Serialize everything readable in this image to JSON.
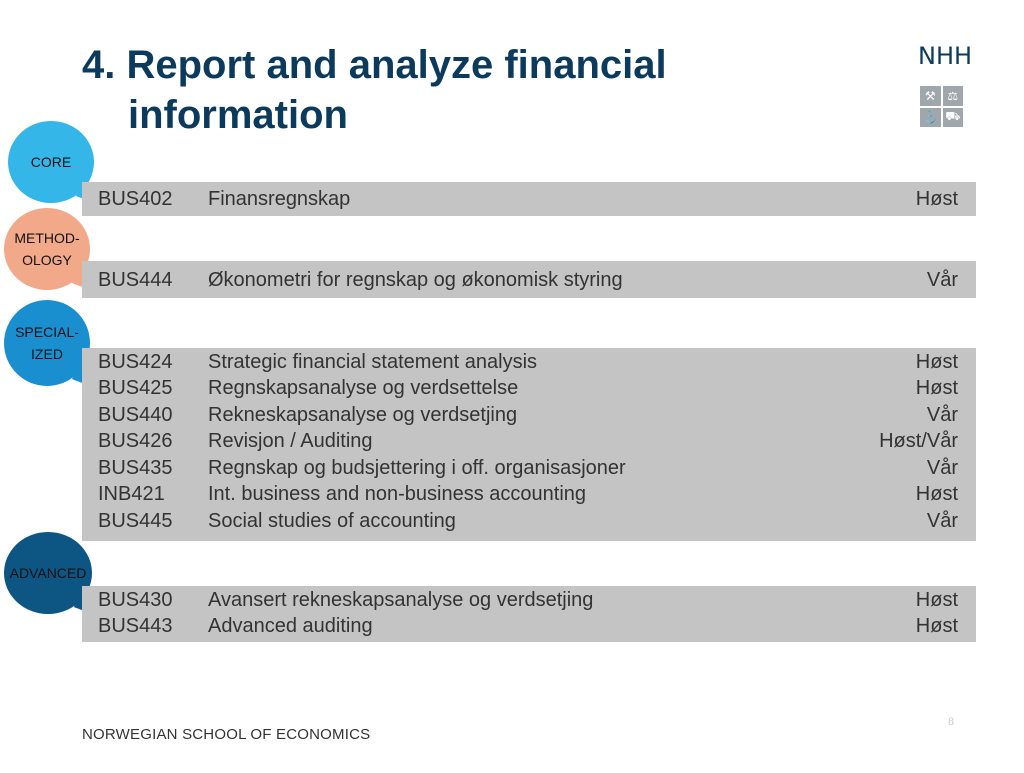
{
  "title": {
    "line1": "4. Report and analyze financial",
    "line2": "information"
  },
  "logo": {
    "text": "NHH",
    "icons": [
      "⚒",
      "⚖",
      "⚓",
      "⛟"
    ]
  },
  "categories": {
    "core": {
      "label": "CORE",
      "color": "#35b6e8"
    },
    "methodology": {
      "label_line1": "METHOD-",
      "label_line2": "OLOGY",
      "color": "#f2a98a"
    },
    "specialized": {
      "label_line1": "SPECIAL-",
      "label_line2": "IZED",
      "color": "#1a8fd0"
    },
    "advanced": {
      "label": "ADVANCED",
      "color": "#0d5583"
    }
  },
  "courses": {
    "core": [
      {
        "code": "BUS402",
        "name": "Finansregnskap",
        "term": "Høst"
      }
    ],
    "methodology": [
      {
        "code": "BUS444",
        "name": "Økonometri for regnskap og økonomisk styring",
        "term": "Vår"
      }
    ],
    "specialized": [
      {
        "code": "BUS424",
        "name": "Strategic financial statement analysis",
        "term": "Høst"
      },
      {
        "code": "BUS425",
        "name": "Regnskapsanalyse og verdsettelse",
        "term": "Høst"
      },
      {
        "code": "BUS440",
        "name": "Rekneskapsanalyse og verdsetjing",
        "term": "Vår"
      },
      {
        "code": "BUS426",
        "name": "Revisjon / Auditing",
        "term": "Høst/Vår"
      },
      {
        "code": "BUS435",
        "name": "Regnskap og budsjettering i off. organisasjoner",
        "term": "Vår"
      },
      {
        "code": "INB421",
        "name": "Int. business and non-business accounting",
        "term": "Høst"
      },
      {
        "code": "BUS445",
        "name": "Social studies of accounting",
        "term": "Vår"
      }
    ],
    "advanced": [
      {
        "code": "BUS430",
        "name": "Avansert rekneskapsanalyse og verdsetjing",
        "term": "Høst"
      },
      {
        "code": "BUS443",
        "name": "Advanced auditing",
        "term": "Høst"
      }
    ]
  },
  "footer": "NORWEGIAN SCHOOL OF ECONOMICS",
  "page_number": "8"
}
